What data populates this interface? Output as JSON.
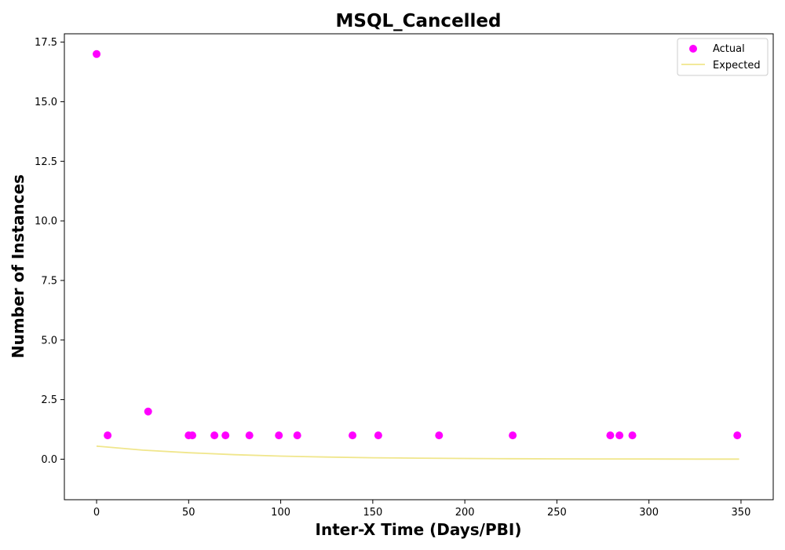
{
  "chart_data": {
    "type": "scatter",
    "title": "MSQL_Cancelled",
    "xlabel": "Inter-X Time (Days/PBI)",
    "ylabel": "Number of Instances",
    "xlim": [
      -17.5,
      367.5
    ],
    "ylim": [
      -1.7,
      17.85
    ],
    "xticks": [
      0,
      50,
      100,
      150,
      200,
      250,
      300,
      350
    ],
    "xtick_labels": [
      "0",
      "50",
      "100",
      "150",
      "200",
      "250",
      "300",
      "350"
    ],
    "yticks": [
      0.0,
      2.5,
      5.0,
      7.5,
      10.0,
      12.5,
      15.0,
      17.5
    ],
    "ytick_labels": [
      "0.0",
      "2.5",
      "5.0",
      "7.5",
      "10.0",
      "12.5",
      "15.0",
      "17.5"
    ],
    "grid": false,
    "legend_position": "top-right",
    "series": [
      {
        "name": "Actual",
        "kind": "scatter",
        "color": "#ff00ff",
        "points": [
          {
            "x": 0,
            "y": 17
          },
          {
            "x": 6,
            "y": 1
          },
          {
            "x": 28,
            "y": 2
          },
          {
            "x": 50,
            "y": 1
          },
          {
            "x": 52,
            "y": 1
          },
          {
            "x": 64,
            "y": 1
          },
          {
            "x": 70,
            "y": 1
          },
          {
            "x": 83,
            "y": 1
          },
          {
            "x": 99,
            "y": 1
          },
          {
            "x": 109,
            "y": 1
          },
          {
            "x": 139,
            "y": 1
          },
          {
            "x": 153,
            "y": 1
          },
          {
            "x": 186,
            "y": 1
          },
          {
            "x": 226,
            "y": 1
          },
          {
            "x": 279,
            "y": 1
          },
          {
            "x": 284,
            "y": 1
          },
          {
            "x": 291,
            "y": 1
          },
          {
            "x": 348,
            "y": 1
          }
        ]
      },
      {
        "name": "Expected",
        "kind": "line",
        "color": "#f0e68c",
        "points": [
          {
            "x": 0,
            "y": 0.55
          },
          {
            "x": 25,
            "y": 0.38
          },
          {
            "x": 50,
            "y": 0.27
          },
          {
            "x": 75,
            "y": 0.19
          },
          {
            "x": 100,
            "y": 0.13
          },
          {
            "x": 125,
            "y": 0.09
          },
          {
            "x": 150,
            "y": 0.06
          },
          {
            "x": 175,
            "y": 0.045
          },
          {
            "x": 200,
            "y": 0.03
          },
          {
            "x": 225,
            "y": 0.02
          },
          {
            "x": 250,
            "y": 0.015
          },
          {
            "x": 275,
            "y": 0.01
          },
          {
            "x": 300,
            "y": 0.007
          },
          {
            "x": 325,
            "y": 0.005
          },
          {
            "x": 349,
            "y": 0.003
          }
        ]
      }
    ]
  }
}
